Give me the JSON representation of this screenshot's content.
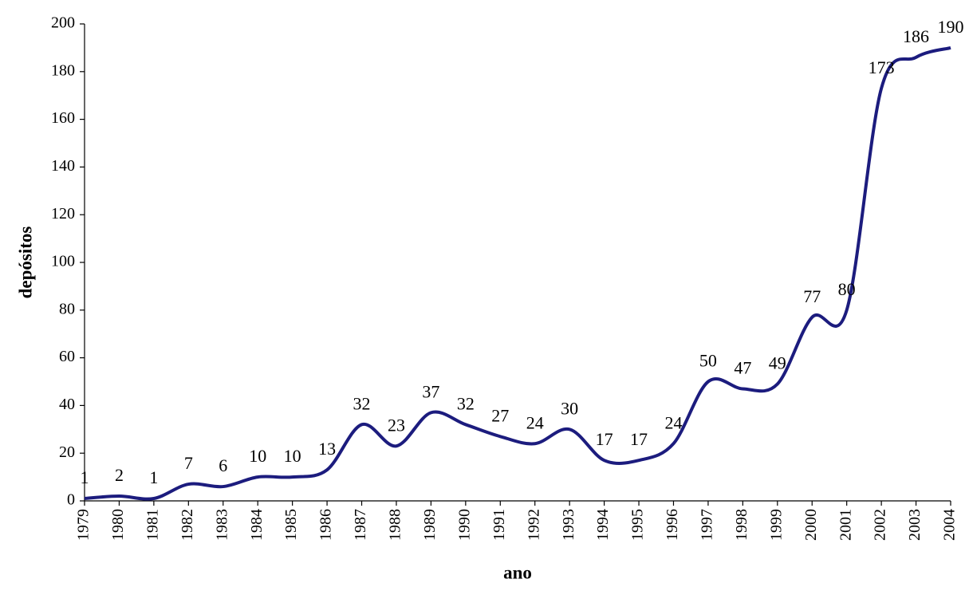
{
  "chart_data": {
    "type": "line",
    "ylabel": "depósitos",
    "xlabel": "ano",
    "x": [
      1979,
      1980,
      1981,
      1982,
      1983,
      1984,
      1985,
      1986,
      1987,
      1988,
      1989,
      1990,
      1991,
      1992,
      1993,
      1994,
      1995,
      1996,
      1997,
      1998,
      1999,
      2000,
      2001,
      2002,
      2003,
      2004
    ],
    "series": [
      {
        "name": "depósitos",
        "color": "#1c1c7e",
        "values": [
          1,
          2,
          1,
          7,
          6,
          10,
          10,
          13,
          32,
          23,
          37,
          32,
          27,
          24,
          30,
          17,
          17,
          24,
          50,
          47,
          49,
          77,
          80,
          173,
          186,
          190
        ]
      }
    ],
    "xlim": [
      1979,
      2004
    ],
    "xticks": [
      1979,
      1980,
      1981,
      1982,
      1983,
      1984,
      1985,
      1986,
      1987,
      1988,
      1989,
      1990,
      1991,
      1992,
      1993,
      1994,
      1995,
      1996,
      1997,
      1998,
      1999,
      2000,
      2001,
      2002,
      2003,
      2004
    ],
    "ylim": [
      0,
      200
    ],
    "yticks": [
      0,
      20,
      40,
      60,
      80,
      100,
      120,
      140,
      160,
      180,
      200
    ],
    "grid": false,
    "data_labels": true
  }
}
